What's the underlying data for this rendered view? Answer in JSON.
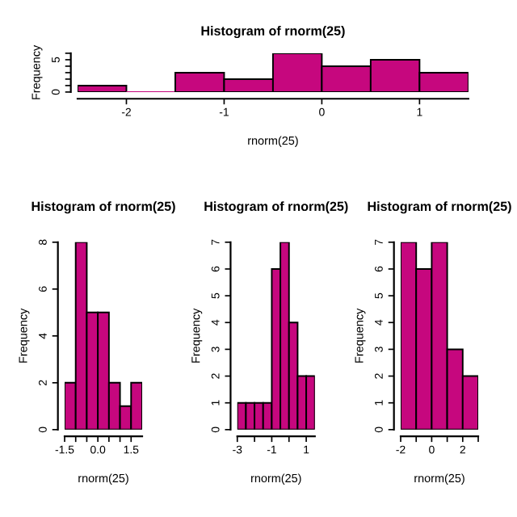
{
  "chart_data": [
    {
      "type": "histogram",
      "title": "Histogram of rnorm(25)",
      "xlabel": "rnorm(25)",
      "ylabel": "Frequency",
      "color": "#c6077e",
      "bins": [
        -2.5,
        -2.0,
        -1.5,
        -1.0,
        -0.5,
        0.0,
        0.5,
        1.0,
        1.5
      ],
      "values": [
        1,
        0,
        3,
        2,
        6,
        4,
        5,
        3
      ],
      "xlim": [
        -2.5,
        1.5
      ],
      "xticks": [
        -2,
        -1,
        0,
        1
      ],
      "ylim": [
        0,
        6
      ],
      "yticks": [
        0,
        {
          "value": 1,
          "label": null
        },
        {
          "value": 2,
          "label": null
        },
        {
          "value": 3,
          "label": null
        },
        {
          "value": 4,
          "label": null
        },
        5,
        {
          "value": 6,
          "label": null
        }
      ]
    },
    {
      "type": "histogram",
      "title": "Histogram of rnorm(25)",
      "xlabel": "rnorm(25)",
      "ylabel": "Frequency",
      "color": "#c6077e",
      "bins": [
        -1.5,
        -1.0,
        -0.5,
        0.0,
        0.5,
        1.0,
        1.5,
        2.0
      ],
      "values": [
        2,
        8,
        5,
        5,
        2,
        1,
        2
      ],
      "xlim": [
        -1.5,
        2.0
      ],
      "xticks": [
        {
          "value": -1.5,
          "label": "-1.5"
        },
        {
          "value": -1.0,
          "label": null
        },
        {
          "value": -0.5,
          "label": null
        },
        {
          "value": 0.0,
          "label": "0.0"
        },
        {
          "value": 0.5,
          "label": null
        },
        {
          "value": 1.0,
          "label": null
        },
        {
          "value": 1.5,
          "label": "1.5"
        }
      ],
      "ylim": [
        0,
        8
      ],
      "yticks": [
        0,
        2,
        4,
        6,
        8
      ]
    },
    {
      "type": "histogram",
      "title": "Histogram of rnorm(25)",
      "xlabel": "rnorm(25)",
      "ylabel": "Frequency",
      "color": "#c6077e",
      "bins": [
        -3.0,
        -2.5,
        -2.0,
        -1.5,
        -1.0,
        -0.5,
        0.0,
        0.5,
        1.0,
        1.5
      ],
      "values": [
        1,
        1,
        1,
        1,
        6,
        7,
        4,
        2,
        2
      ],
      "xlim": [
        -3.0,
        1.5
      ],
      "xticks": [
        -3,
        {
          "value": -2,
          "label": null
        },
        -1,
        {
          "value": 0,
          "label": null
        },
        1
      ],
      "ylim": [
        0,
        7
      ],
      "yticks": [
        0,
        1,
        2,
        3,
        4,
        5,
        6,
        7
      ]
    },
    {
      "type": "histogram",
      "title": "Histogram of rnorm(25)",
      "xlabel": "rnorm(25)",
      "ylabel": "Frequency",
      "color": "#c6077e",
      "bins": [
        -2,
        -1,
        0,
        1,
        2,
        3
      ],
      "values": [
        7,
        6,
        7,
        3,
        2
      ],
      "xlim": [
        -2,
        3
      ],
      "xticks": [
        -2,
        {
          "value": -1,
          "label": null
        },
        0,
        {
          "value": 1,
          "label": null
        },
        2,
        {
          "value": 3,
          "label": null
        }
      ],
      "ylim": [
        0,
        7
      ],
      "yticks": [
        0,
        1,
        2,
        3,
        4,
        5,
        6,
        7
      ]
    }
  ]
}
